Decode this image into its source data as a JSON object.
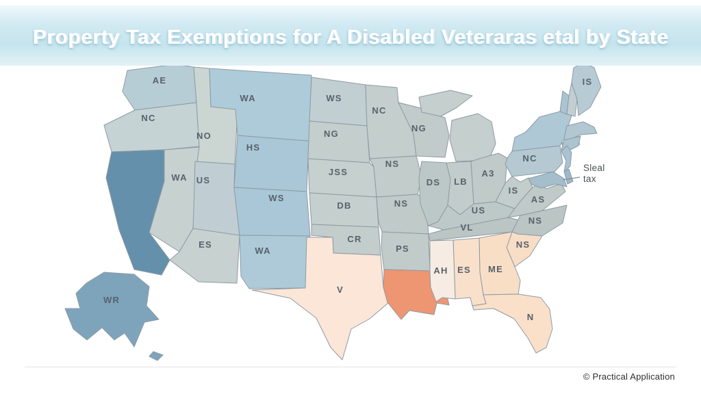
{
  "header": {
    "title": "Property Tax Exemptions for A Disabled Veteraras etal by State"
  },
  "annotation": {
    "line1": "Sleal",
    "line2": "tax"
  },
  "footer": {
    "credit": "© Practical Application"
  },
  "map": {
    "border_color": "#8d9aa3",
    "label_color": "#57616b",
    "states": [
      {
        "id": "washington",
        "label": "AE",
        "color": "#b7cdd6"
      },
      {
        "id": "oregon",
        "label": "NC",
        "color": "#c6d3d4"
      },
      {
        "id": "california",
        "label": "",
        "color": "#6590ac"
      },
      {
        "id": "idaho",
        "label": "NO",
        "color": "#cbd6d3"
      },
      {
        "id": "nevada",
        "label": "WA",
        "color": "#c7d1d0"
      },
      {
        "id": "utah",
        "label": "US",
        "color": "#c0ced3"
      },
      {
        "id": "arizona",
        "label": "ES",
        "color": "#c7d1d0"
      },
      {
        "id": "montana",
        "label": "WA",
        "color": "#aecbd9"
      },
      {
        "id": "wyoming",
        "label": "HS",
        "color": "#a9c7d6"
      },
      {
        "id": "colorado",
        "label": "WS",
        "color": "#a9c7d7"
      },
      {
        "id": "new-mexico",
        "label": "WA",
        "color": "#aecad8"
      },
      {
        "id": "north-dakota",
        "label": "WS",
        "color": "#c1ced2"
      },
      {
        "id": "south-dakota",
        "label": "NG",
        "color": "#c3cecd"
      },
      {
        "id": "nebraska",
        "label": "JSS",
        "color": "#c6d0cf"
      },
      {
        "id": "kansas",
        "label": "DB",
        "color": "#c4cfce"
      },
      {
        "id": "oklahoma",
        "label": "CR",
        "color": "#c2cdcc"
      },
      {
        "id": "texas",
        "label": "V",
        "color": "#fbe6d7"
      },
      {
        "id": "minnesota",
        "label": "NC",
        "color": "#c3cecd"
      },
      {
        "id": "iowa",
        "label": "NS",
        "color": "#c1cccb"
      },
      {
        "id": "missouri",
        "label": "NS",
        "color": "#bfcac9"
      },
      {
        "id": "arkansas",
        "label": "PS",
        "color": "#c0cbca"
      },
      {
        "id": "louisiana",
        "label": "",
        "color": "#ee9572"
      },
      {
        "id": "wisconsin",
        "label": "NG",
        "color": "#c0cbca"
      },
      {
        "id": "illinois",
        "label": "DS",
        "color": "#bcc8c7"
      },
      {
        "id": "michigan",
        "label": "",
        "color": "#c4cfce"
      },
      {
        "id": "indiana",
        "label": "LB",
        "color": "#c2cdcb"
      },
      {
        "id": "ohio",
        "label": "A3",
        "color": "#bfcac9"
      },
      {
        "id": "kentucky",
        "label": "US",
        "color": "#bdc9c8"
      },
      {
        "id": "tennessee",
        "label": "VL",
        "color": "#bac5c4"
      },
      {
        "id": "west-virginia",
        "label": "IS",
        "color": "#c2cdcc"
      },
      {
        "id": "virginia",
        "label": "AS",
        "color": "#bfcac9"
      },
      {
        "id": "north-carolina",
        "label": "NS",
        "color": "#bac5c4"
      },
      {
        "id": "south-carolina",
        "label": "NS",
        "color": "#f8ddc7"
      },
      {
        "id": "georgia",
        "label": "ME",
        "color": "#f9dec6"
      },
      {
        "id": "alabama",
        "label": "ES",
        "color": "#f8e0ca"
      },
      {
        "id": "mississippi",
        "label": "AH",
        "color": "#f7ece3"
      },
      {
        "id": "florida",
        "label": "N",
        "color": "#fadfc9"
      },
      {
        "id": "pennsylvania",
        "label": "NC",
        "color": "#b5c9d3"
      },
      {
        "id": "new-york",
        "label": "",
        "color": "#aec8d6"
      },
      {
        "id": "vermont",
        "label": "",
        "color": "#a9c4d3"
      },
      {
        "id": "new-hampshire",
        "label": "",
        "color": "#c2ced2"
      },
      {
        "id": "maine",
        "label": "IS",
        "color": "#b6cbd4"
      },
      {
        "id": "massachusetts",
        "label": "",
        "color": "#b1c7d2"
      },
      {
        "id": "connecticut-rhode-island",
        "label": "",
        "color": "#acc4d0"
      },
      {
        "id": "new-jersey",
        "label": "",
        "color": "#aac3d2"
      },
      {
        "id": "maryland",
        "label": "",
        "color": "#a4becc"
      },
      {
        "id": "delaware",
        "label": "",
        "color": "#9db9c9"
      },
      {
        "id": "alaska",
        "label": "WR",
        "color": "#7ea4bc"
      }
    ]
  }
}
